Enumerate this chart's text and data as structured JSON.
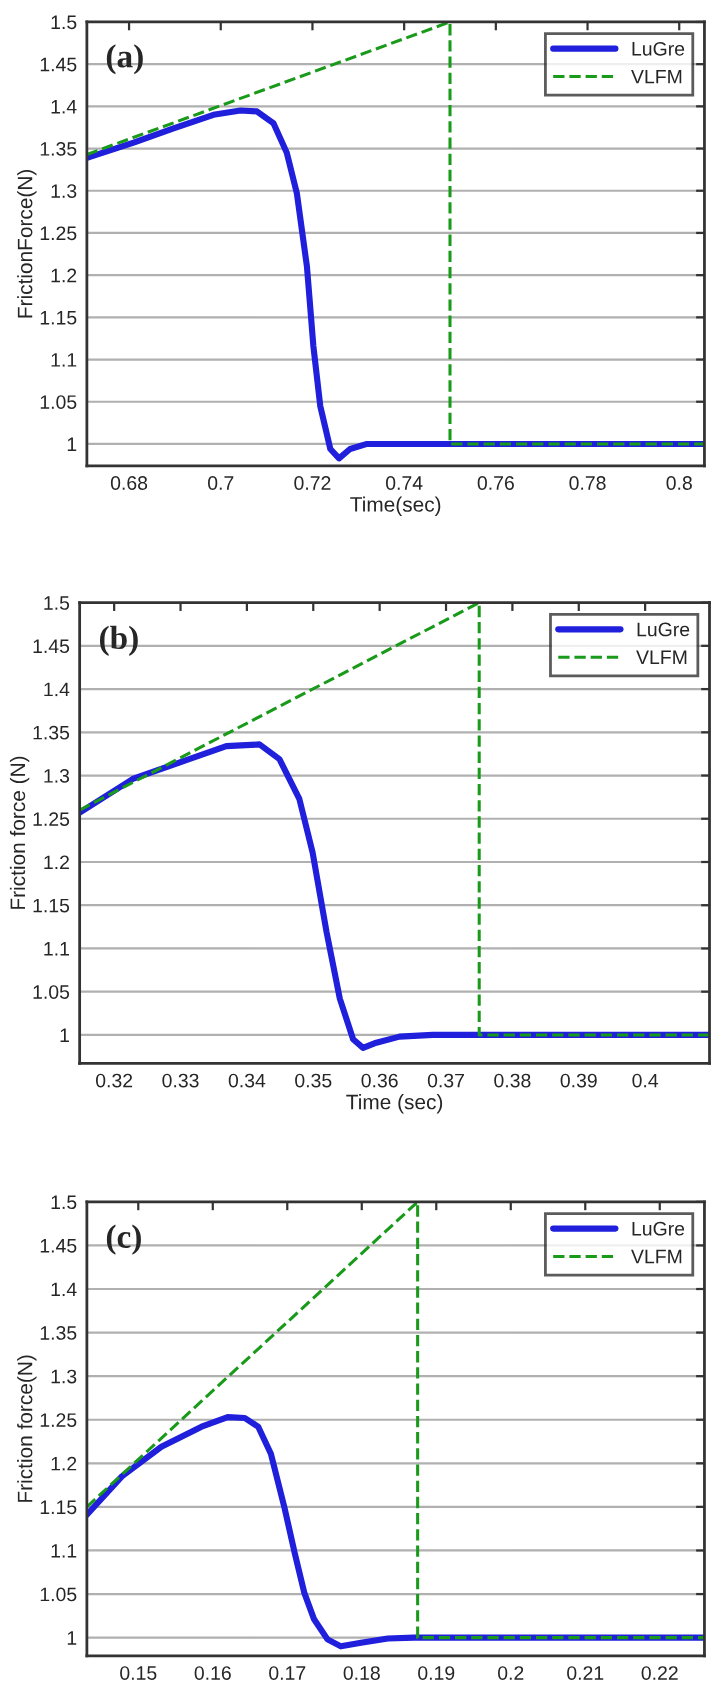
{
  "chart_data": [
    {
      "type": "line",
      "xlabel": "Time(sec)",
      "ylabel": "FrictionForce(N)",
      "annotations": [
        "(a)"
      ],
      "xlim": [
        0.6708,
        0.8055
      ],
      "ylim": [
        0.974,
        1.5
      ],
      "xticks": [
        0.68,
        0.7,
        0.72,
        0.74,
        0.76,
        0.78,
        0.8
      ],
      "yticks": [
        1,
        1.05,
        1.1,
        1.15,
        1.2,
        1.25,
        1.3,
        1.35,
        1.4,
        1.45,
        1.5
      ],
      "grid": "y",
      "legend": "top right",
      "series": [
        {
          "name": "LuGre",
          "color": "#1f1fdc",
          "line_style": "solid",
          "x": [
            0.6708,
            0.681,
            0.6897,
            0.6984,
            0.7043,
            0.7079,
            0.7115,
            0.7144,
            0.7166,
            0.7188,
            0.7202,
            0.7217,
            0.7239,
            0.7258,
            0.7282,
            0.7319,
            0.8055
          ],
          "values": [
            1.339,
            1.357,
            1.374,
            1.39,
            1.395,
            1.394,
            1.38,
            1.345,
            1.297,
            1.21,
            1.116,
            1.045,
            0.994,
            0.983,
            0.994,
            1.0,
            1.0
          ]
        },
        {
          "name": "VLFM",
          "color": "#1a9a1a",
          "line_style": "dashed",
          "x": [
            0.6708,
            0.75,
            0.75,
            0.8055
          ],
          "values": [
            1.343,
            1.5,
            1.0,
            1.0
          ]
        }
      ]
    },
    {
      "type": "line",
      "xlabel": "Time (sec)",
      "ylabel": "Friction force (N)",
      "annotations": [
        "(b)"
      ],
      "xlim": [
        0.3148,
        0.4097
      ],
      "ylim": [
        0.967,
        1.5
      ],
      "xticks": [
        0.32,
        0.33,
        0.34,
        0.35,
        0.36,
        0.37,
        0.38,
        0.39,
        0.4
      ],
      "yticks": [
        1,
        1.05,
        1.1,
        1.15,
        1.2,
        1.25,
        1.3,
        1.35,
        1.4,
        1.45,
        1.5
      ],
      "grid": "y",
      "legend": "top right",
      "series": [
        {
          "name": "LuGre",
          "color": "#1f1fdc",
          "line_style": "solid",
          "x": [
            0.3148,
            0.3228,
            0.3298,
            0.3369,
            0.3419,
            0.3449,
            0.3479,
            0.3499,
            0.352,
            0.354,
            0.356,
            0.3575,
            0.3595,
            0.363,
            0.368,
            0.4097
          ],
          "values": [
            1.257,
            1.296,
            1.315,
            1.334,
            1.336,
            1.319,
            1.273,
            1.211,
            1.119,
            1.042,
            0.995,
            0.985,
            0.991,
            0.998,
            1.0,
            1.0
          ]
        },
        {
          "name": "VLFM",
          "color": "#1a9a1a",
          "line_style": "dashed",
          "x": [
            0.3148,
            0.375,
            0.375,
            0.4097
          ],
          "values": [
            1.26,
            1.5,
            1.0,
            1.0
          ]
        }
      ]
    },
    {
      "type": "line",
      "ylabel": "Friction force(N)",
      "annotations": [
        "(c)"
      ],
      "xlim": [
        0.1431,
        0.226
      ],
      "ylim": [
        0.979,
        1.5
      ],
      "xticks": [
        0.15,
        0.16,
        0.17,
        0.18,
        0.19,
        0.2,
        0.21,
        0.22
      ],
      "yticks": [
        1,
        1.05,
        1.1,
        1.15,
        1.2,
        1.25,
        1.3,
        1.35,
        1.4,
        1.45,
        1.5
      ],
      "grid": "y",
      "legend": "top right",
      "series": [
        {
          "name": "LuGre",
          "color": "#1f1fdc",
          "line_style": "solid",
          "x": [
            0.1431,
            0.1478,
            0.1531,
            0.1585,
            0.162,
            0.1643,
            0.1661,
            0.1678,
            0.1696,
            0.171,
            0.1723,
            0.1736,
            0.1754,
            0.1772,
            0.1799,
            0.1835,
            0.187,
            0.226
          ],
          "values": [
            1.141,
            1.185,
            1.219,
            1.242,
            1.253,
            1.252,
            1.242,
            1.211,
            1.15,
            1.097,
            1.051,
            1.021,
            0.998,
            0.99,
            0.994,
            0.999,
            1.0,
            1.0
          ]
        },
        {
          "name": "VLFM",
          "color": "#1a9a1a",
          "line_style": "dashed",
          "x": [
            0.1431,
            0.1875,
            0.1875,
            0.226
          ],
          "values": [
            1.15,
            1.5,
            1.0,
            1.0
          ]
        }
      ]
    }
  ]
}
